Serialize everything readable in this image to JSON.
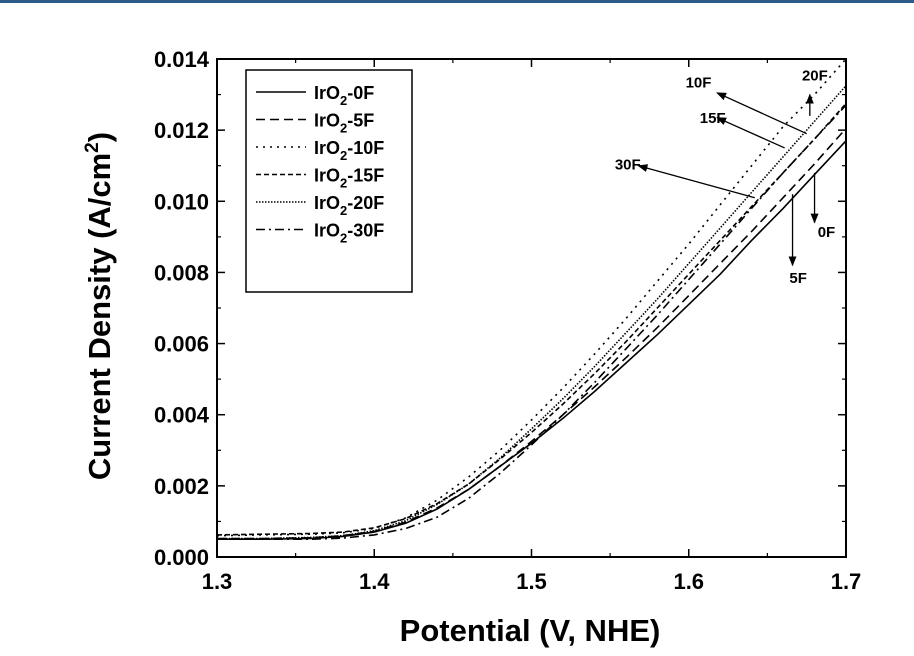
{
  "chart_data": {
    "type": "line",
    "xlabel": "Potential (V, NHE)",
    "ylabel": "Current Density (A/cm²)",
    "xlim": [
      1.3,
      1.7
    ],
    "ylim": [
      0.0,
      0.014
    ],
    "x_ticks": [
      "1.3",
      "1.4",
      "1.5",
      "1.6",
      "1.7"
    ],
    "y_ticks": [
      "0.000",
      "0.002",
      "0.004",
      "0.006",
      "0.008",
      "0.010",
      "0.012",
      "0.014"
    ],
    "grid": false,
    "legend_position": "top-left",
    "x": [
      1.3,
      1.33,
      1.36,
      1.38,
      1.4,
      1.42,
      1.44,
      1.46,
      1.48,
      1.5,
      1.52,
      1.54,
      1.56,
      1.58,
      1.6,
      1.62,
      1.64,
      1.66,
      1.68,
      1.7
    ],
    "series": [
      {
        "name": "IrO2-0F",
        "dash": "solid",
        "values": [
          0.0005,
          0.0005,
          0.00052,
          0.00058,
          0.0007,
          0.00095,
          0.00135,
          0.0019,
          0.00255,
          0.0032,
          0.0039,
          0.00465,
          0.00545,
          0.00625,
          0.0071,
          0.00795,
          0.0089,
          0.0098,
          0.01075,
          0.0117
        ]
      },
      {
        "name": "IrO2-5F",
        "dash": "dashed",
        "values": [
          0.00052,
          0.00052,
          0.00054,
          0.0006,
          0.00072,
          0.00098,
          0.00138,
          0.0019,
          0.00255,
          0.00325,
          0.004,
          0.00478,
          0.0056,
          0.00645,
          0.00735,
          0.00825,
          0.00915,
          0.0101,
          0.01105,
          0.01205
        ]
      },
      {
        "name": "IrO2-10F",
        "dash": "dotted",
        "values": [
          0.0006,
          0.00062,
          0.00064,
          0.00068,
          0.0008,
          0.0011,
          0.0016,
          0.00225,
          0.003,
          0.00385,
          0.00475,
          0.0057,
          0.0067,
          0.00775,
          0.0088,
          0.0099,
          0.011,
          0.0121,
          0.013,
          0.014
        ]
      },
      {
        "name": "IrO2-15F",
        "dash": "short-dash",
        "values": [
          0.00062,
          0.00064,
          0.00066,
          0.0007,
          0.00082,
          0.00108,
          0.0015,
          0.00205,
          0.00275,
          0.0035,
          0.0043,
          0.00515,
          0.00605,
          0.007,
          0.00795,
          0.0089,
          0.00985,
          0.0108,
          0.01175,
          0.01275
        ]
      },
      {
        "name": "IrO2-20F",
        "dash": "fine-dot",
        "values": [
          0.00052,
          0.00052,
          0.00055,
          0.0006,
          0.00074,
          0.00102,
          0.00148,
          0.00205,
          0.00278,
          0.0036,
          0.00445,
          0.00535,
          0.0063,
          0.00725,
          0.00825,
          0.00925,
          0.01025,
          0.01125,
          0.01225,
          0.01325
        ]
      },
      {
        "name": "IrO2-30F",
        "dash": "dash-dot",
        "values": [
          0.0005,
          0.0005,
          0.0005,
          0.00053,
          0.00062,
          0.0008,
          0.00112,
          0.00165,
          0.00235,
          0.00315,
          0.004,
          0.0049,
          0.00585,
          0.0068,
          0.0078,
          0.0088,
          0.0098,
          0.0108,
          0.01175,
          0.0127
        ]
      }
    ],
    "legend_entries": [
      {
        "base": "IrO",
        "sub": "2",
        "suffix": "-0F",
        "dash": "solid"
      },
      {
        "base": "IrO",
        "sub": "2",
        "suffix": "-5F",
        "dash": "dashed"
      },
      {
        "base": "IrO",
        "sub": "2",
        "suffix": "-10F",
        "dash": "dotted"
      },
      {
        "base": "IrO",
        "sub": "2",
        "suffix": "-15F",
        "dash": "short-dash"
      },
      {
        "base": "IrO",
        "sub": "2",
        "suffix": "-20F",
        "dash": "fine-dot"
      },
      {
        "base": "IrO",
        "sub": "2",
        "suffix": "-30F",
        "dash": "dash-dot"
      }
    ],
    "annotations": [
      {
        "label": "10F",
        "from": [
          1.675,
          0.0119
        ],
        "to": [
          1.618,
          0.01305
        ],
        "text_at": [
          1.598,
          0.0132
        ]
      },
      {
        "label": "20F",
        "from": [
          1.677,
          0.0124
        ],
        "to": [
          1.677,
          0.013
        ],
        "text_at": [
          1.672,
          0.0134
        ]
      },
      {
        "label": "15F",
        "from": [
          1.661,
          0.0115
        ],
        "to": [
          1.618,
          0.01235
        ],
        "text_at": [
          1.607,
          0.0122
        ]
      },
      {
        "label": "30F",
        "from": [
          1.642,
          0.0101
        ],
        "to": [
          1.568,
          0.011
        ],
        "text_at": [
          1.553,
          0.0109
        ]
      },
      {
        "label": "0F",
        "from": [
          1.68,
          0.0108
        ],
        "to": [
          1.68,
          0.0094
        ],
        "text_at": [
          1.682,
          0.009
        ]
      },
      {
        "label": "5F",
        "from": [
          1.666,
          0.0102
        ],
        "to": [
          1.666,
          0.0082
        ],
        "text_at": [
          1.664,
          0.0077
        ]
      }
    ]
  }
}
